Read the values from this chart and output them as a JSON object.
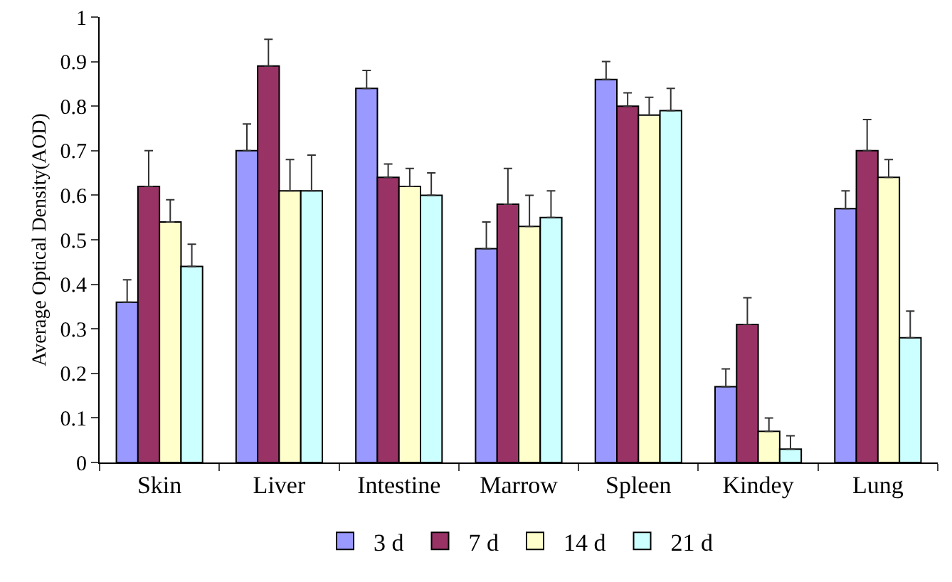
{
  "chart_data": {
    "type": "bar",
    "ylabel": "Average Optical Density(AOD)",
    "categories": [
      "Skin",
      "Liver",
      "Intestine",
      "Marrow",
      "Spleen",
      "Kindey",
      "Lung"
    ],
    "series": [
      {
        "name": "3 d",
        "color": "#9999ff",
        "values": [
          0.36,
          0.7,
          0.84,
          0.48,
          0.86,
          0.17,
          0.57
        ],
        "errors": [
          [
            0.36,
            0.41
          ],
          [
            0.7,
            0.76
          ],
          [
            0.84,
            0.88
          ],
          [
            0.48,
            0.54
          ],
          [
            0.86,
            0.9
          ],
          [
            0.17,
            0.21
          ],
          [
            0.57,
            0.61
          ]
        ]
      },
      {
        "name": "7 d",
        "color": "#993366",
        "values": [
          0.62,
          0.89,
          0.64,
          0.58,
          0.8,
          0.31,
          0.7
        ],
        "errors": [
          [
            0.62,
            0.7
          ],
          [
            0.89,
            0.95
          ],
          [
            0.64,
            0.67
          ],
          [
            0.58,
            0.66
          ],
          [
            0.8,
            0.83
          ],
          [
            0.31,
            0.37
          ],
          [
            0.7,
            0.77
          ]
        ]
      },
      {
        "name": "14 d",
        "color": "#ffffcc",
        "values": [
          0.54,
          0.61,
          0.62,
          0.53,
          0.78,
          0.07,
          0.64
        ],
        "errors": [
          [
            0.54,
            0.59
          ],
          [
            0.61,
            0.68
          ],
          [
            0.62,
            0.66
          ],
          [
            0.53,
            0.6
          ],
          [
            0.78,
            0.82
          ],
          [
            0.07,
            0.1
          ],
          [
            0.64,
            0.68
          ]
        ]
      },
      {
        "name": "21 d",
        "color": "#ccffff",
        "values": [
          0.44,
          0.61,
          0.6,
          0.55,
          0.79,
          0.03,
          0.28
        ],
        "errors": [
          [
            0.44,
            0.49
          ],
          [
            0.61,
            0.69
          ],
          [
            0.6,
            0.65
          ],
          [
            0.55,
            0.61
          ],
          [
            0.79,
            0.84
          ],
          [
            0.03,
            0.06
          ],
          [
            0.28,
            0.34
          ]
        ]
      }
    ],
    "ylim": [
      0,
      1
    ],
    "yticks": [
      0,
      0.1,
      0.2,
      0.3,
      0.4,
      0.5,
      0.6,
      0.7,
      0.8,
      0.9,
      1
    ],
    "grid": false,
    "legend": "bottom"
  }
}
